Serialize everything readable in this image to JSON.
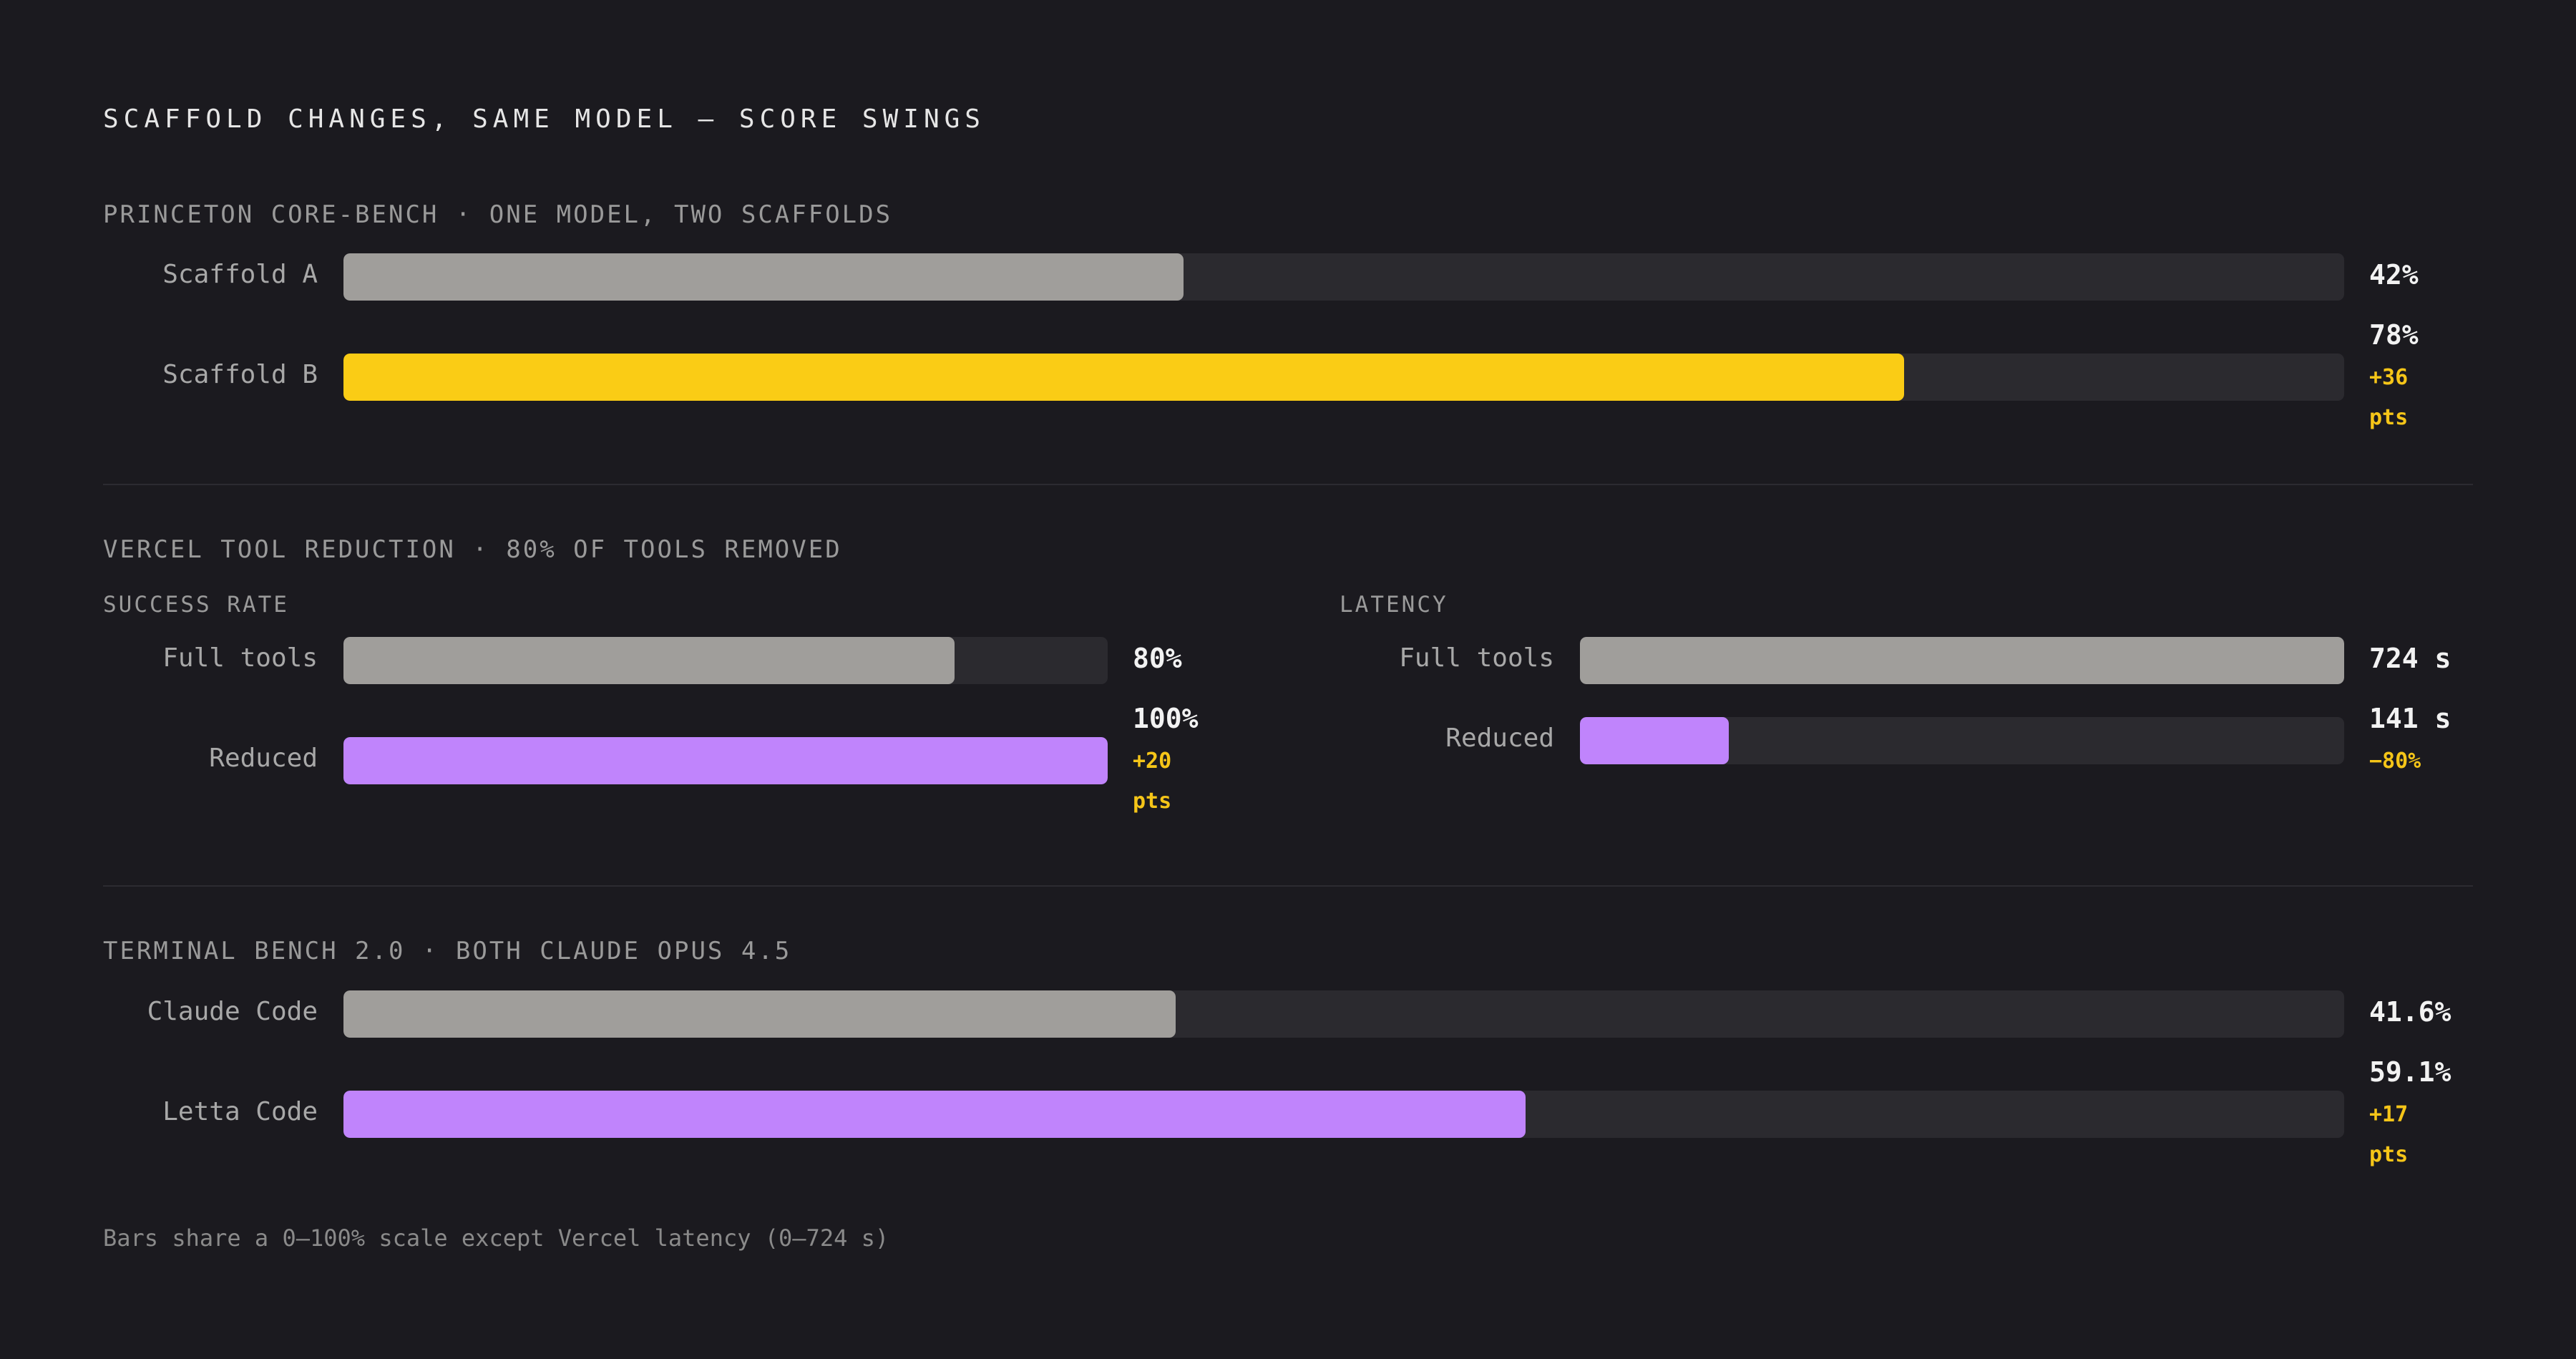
{
  "title": "SCAFFOLD CHANGES, SAME MODEL — SCORE SWINGS",
  "footnote": "Bars share a 0–100% scale except Vercel latency (0–724 s)",
  "colors": {
    "background": "#1b1a1f",
    "track": "#2b2a2f",
    "baseline_bar": "#a09e9b",
    "yellow_bar": "#facc15",
    "purple_bar": "#c084fc",
    "delta_text": "#f5c518"
  },
  "chart_data": [
    {
      "type": "bar",
      "orientation": "horizontal",
      "title": "PRINCETON CORE-BENCH  ·  ONE MODEL, TWO SCAFFOLDS",
      "categories": [
        "Scaffold A",
        "Scaffold B"
      ],
      "values": [
        42,
        78
      ],
      "value_labels": [
        "42%",
        "78%"
      ],
      "annotations": [
        "",
        "+36 pts"
      ],
      "xlim": [
        0,
        100
      ],
      "unit": "%"
    },
    {
      "type": "bar",
      "orientation": "horizontal",
      "title": "VERCEL TOOL REDUCTION  ·  80% OF TOOLS REMOVED",
      "subtitle": "SUCCESS RATE",
      "categories": [
        "Full tools",
        "Reduced"
      ],
      "values": [
        80,
        100
      ],
      "value_labels": [
        "80%",
        "100%"
      ],
      "annotations": [
        "",
        "+20 pts"
      ],
      "xlim": [
        0,
        100
      ],
      "unit": "%"
    },
    {
      "type": "bar",
      "orientation": "horizontal",
      "subtitle": "LATENCY",
      "categories": [
        "Full tools",
        "Reduced"
      ],
      "values": [
        724,
        141
      ],
      "value_labels": [
        "724 s",
        "141 s"
      ],
      "annotations": [
        "",
        "−80%"
      ],
      "xlim": [
        0,
        724
      ],
      "unit": "s"
    },
    {
      "type": "bar",
      "orientation": "horizontal",
      "title": "TERMINAL BENCH 2.0  ·  BOTH CLAUDE OPUS 4.5",
      "categories": [
        "Claude Code",
        "Letta Code"
      ],
      "values": [
        41.6,
        59.1
      ],
      "value_labels": [
        "41.6%",
        "59.1%"
      ],
      "annotations": [
        "",
        "+17 pts"
      ],
      "xlim": [
        0,
        100
      ],
      "unit": "%"
    }
  ]
}
